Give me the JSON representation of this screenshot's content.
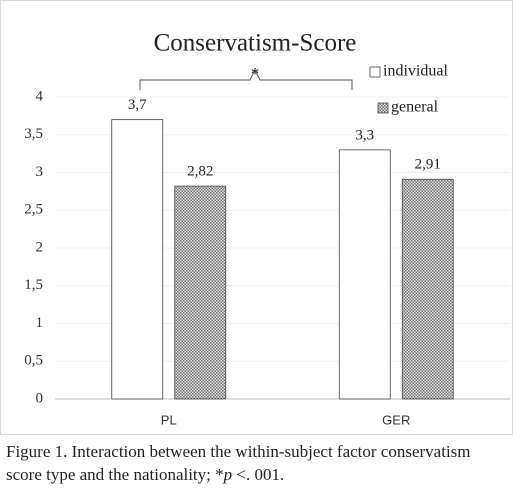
{
  "chart_data": {
    "type": "bar",
    "title": "Conservatism-Score",
    "categories": [
      "PL",
      "GER"
    ],
    "series": [
      {
        "name": "individual",
        "color": "#ffffff",
        "values": [
          3.7,
          3.3
        ],
        "value_labels": [
          "3,7",
          "3,3"
        ]
      },
      {
        "name": "general",
        "color": "#6e6e6e",
        "values": [
          2.82,
          2.91
        ],
        "value_labels": [
          "2,82",
          "2,91"
        ]
      }
    ],
    "ylim": [
      0,
      4
    ],
    "yticks": [
      0,
      {
        "value": 0.5,
        "label": "0,5"
      },
      1,
      {
        "value": 1.5,
        "label": "1,5"
      },
      2,
      {
        "value": 2.5,
        "label": "2,5"
      },
      3,
      {
        "value": 3.5,
        "label": "3,5"
      },
      4
    ],
    "grid": true,
    "legend": "top-right",
    "annotation": "*",
    "caption": [
      "Figure 1. Interaction between the within-subject factor conservatism score type and the nationality; *",
      "p",
      " <. 001."
    ]
  }
}
